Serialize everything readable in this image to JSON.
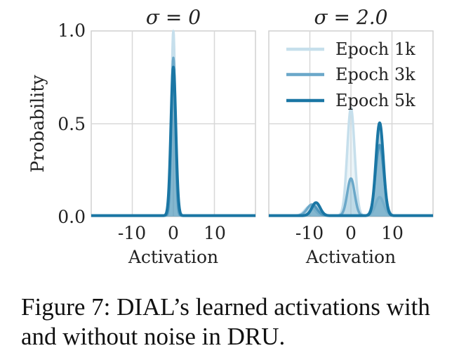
{
  "chart_data": [
    {
      "type": "line",
      "title": "σ = 0",
      "xlabel": "Activation",
      "ylabel": "Probability",
      "xlim": [
        -20,
        20
      ],
      "ylim": [
        0,
        1.0
      ],
      "xticks": [
        "-10",
        "0",
        "10"
      ],
      "yticks": [
        "0.0",
        "0.5",
        "1.0"
      ],
      "grid": true,
      "series": [
        {
          "name": "Epoch 1k",
          "color": "#c6dfec",
          "peaks": [
            {
              "mu": 0,
              "sigma": 0.45,
              "amp": 1.0
            }
          ]
        },
        {
          "name": "Epoch 3k",
          "color": "#6ba8c9",
          "peaks": [
            {
              "mu": 0,
              "sigma": 0.5,
              "amp": 0.85
            }
          ]
        },
        {
          "name": "Epoch 5k",
          "color": "#1a76a4",
          "peaks": [
            {
              "mu": 0,
              "sigma": 0.6,
              "amp": 0.8
            }
          ]
        }
      ]
    },
    {
      "type": "line",
      "title": "σ = 2.0",
      "xlabel": "Activation",
      "ylabel": "",
      "xlim": [
        -20,
        20
      ],
      "ylim": [
        0,
        1.0
      ],
      "xticks": [
        "-10",
        "0",
        "10"
      ],
      "yticks": [],
      "grid": true,
      "legend": "top-right",
      "series": [
        {
          "name": "Epoch 1k",
          "color": "#c6dfec",
          "peaks": [
            {
              "mu": 0,
              "sigma": 0.9,
              "amp": 0.58
            },
            {
              "mu": -10,
              "sigma": 1.2,
              "amp": 0.05
            },
            {
              "mu": 7,
              "sigma": 1.0,
              "amp": 0.1
            }
          ]
        },
        {
          "name": "Epoch 3k",
          "color": "#6ba8c9",
          "peaks": [
            {
              "mu": -9.5,
              "sigma": 1.2,
              "amp": 0.06
            },
            {
              "mu": 7,
              "sigma": 1.0,
              "amp": 0.38
            },
            {
              "mu": 0,
              "sigma": 0.9,
              "amp": 0.2
            }
          ]
        },
        {
          "name": "Epoch 5k",
          "color": "#1a76a4",
          "peaks": [
            {
              "mu": -8.5,
              "sigma": 1.0,
              "amp": 0.07
            },
            {
              "mu": 7,
              "sigma": 0.9,
              "amp": 0.5
            }
          ]
        }
      ]
    }
  ],
  "caption": "Figure 7: DIAL’s learned activations with and without noise in DRU."
}
